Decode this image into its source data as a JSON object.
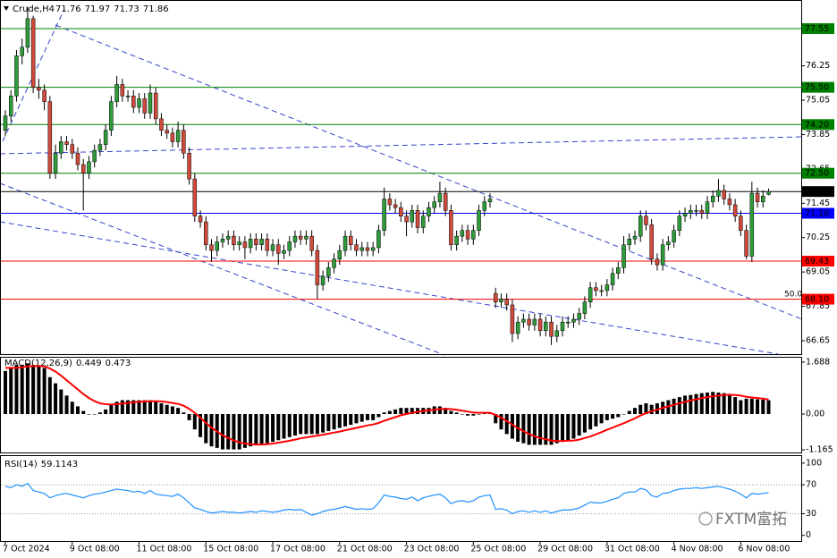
{
  "chart_data": {
    "type": "candlestick",
    "symbol": "Crude,H4",
    "header_values": [
      71.76,
      71.97,
      71.73,
      71.86
    ],
    "watermark": "FXTM富拓",
    "annotation": "50.0",
    "up_color": "#2e9c3a",
    "down_color": "#d04a3c",
    "ylim": [
      66.15,
      78.55
    ],
    "yticks": [
      76.25,
      75.05,
      73.85,
      72.65,
      71.45,
      70.25,
      69.05,
      67.85,
      66.65
    ],
    "levels": [
      {
        "value": 77.55,
        "color": "#008000"
      },
      {
        "value": 75.5,
        "label": "75.50",
        "color": "#008000"
      },
      {
        "value": 74.2,
        "label": "74.20",
        "color": "#008000"
      },
      {
        "value": 72.5,
        "label": "72.50",
        "color": "#008000"
      },
      {
        "value": 71.86,
        "color": "#000000"
      },
      {
        "value": 71.1,
        "label": "71.10",
        "color": "#0000ff"
      },
      {
        "value": 69.43,
        "color": "#ff0000"
      },
      {
        "value": 68.1,
        "label": "68.10",
        "color": "#ff0000"
      }
    ],
    "categories": [
      "7 Oct 2024",
      null,
      null,
      null,
      null,
      null,
      null,
      null,
      null,
      null,
      null,
      null,
      "9 Oct 08:00",
      null,
      null,
      null,
      null,
      null,
      null,
      null,
      null,
      null,
      null,
      null,
      "11 Oct 08:00",
      null,
      null,
      null,
      null,
      null,
      null,
      null,
      null,
      null,
      null,
      null,
      "15 Oct 08:00",
      null,
      null,
      null,
      null,
      null,
      null,
      null,
      null,
      null,
      null,
      null,
      "17 Oct 08:00",
      null,
      null,
      null,
      null,
      null,
      null,
      null,
      null,
      null,
      null,
      null,
      "21 Oct 08:00",
      null,
      null,
      null,
      null,
      null,
      null,
      null,
      null,
      null,
      null,
      null,
      "23 Oct 08:00",
      null,
      null,
      null,
      null,
      null,
      null,
      null,
      null,
      null,
      null,
      null,
      "25 Oct 08:00",
      null,
      null,
      null,
      null,
      null,
      null,
      null,
      null,
      null,
      null,
      null,
      "29 Oct 08:00",
      null,
      null,
      null,
      null,
      null,
      null,
      null,
      null,
      null,
      null,
      null,
      "31 Oct 08:00",
      null,
      null,
      null,
      null,
      null,
      null,
      null,
      null,
      null,
      null,
      null,
      "4 Nov 08:00",
      null,
      null,
      null,
      null,
      null,
      null,
      null,
      null,
      null,
      null,
      null,
      "6 Nov 08:00",
      null,
      null,
      null,
      null,
      null
    ],
    "candles": [
      [
        74.0,
        74.7,
        73.8,
        74.5
      ],
      [
        74.5,
        75.4,
        74.3,
        75.2
      ],
      [
        75.2,
        76.8,
        75.0,
        76.6
      ],
      [
        76.6,
        77.2,
        76.3,
        76.9
      ],
      [
        76.9,
        78.3,
        76.7,
        77.9
      ],
      [
        77.9,
        78.0,
        75.3,
        75.5
      ],
      [
        75.5,
        75.8,
        75.1,
        75.4
      ],
      [
        75.4,
        75.6,
        74.7,
        75.0
      ],
      [
        75.0,
        75.2,
        72.3,
        72.5
      ],
      [
        72.5,
        73.5,
        72.3,
        73.2
      ],
      [
        73.2,
        73.8,
        73.0,
        73.6
      ],
      [
        73.6,
        73.8,
        73.3,
        73.5
      ],
      [
        73.5,
        73.7,
        73.0,
        73.2
      ],
      [
        73.2,
        73.4,
        72.6,
        72.8
      ],
      [
        72.8,
        73.0,
        71.2,
        72.5
      ],
      [
        72.5,
        73.1,
        72.3,
        72.9
      ],
      [
        72.9,
        73.5,
        72.7,
        73.3
      ],
      [
        73.3,
        73.7,
        73.1,
        73.5
      ],
      [
        73.5,
        74.2,
        73.3,
        74.0
      ],
      [
        74.0,
        75.2,
        73.8,
        75.0
      ],
      [
        75.0,
        75.9,
        74.8,
        75.6
      ],
      [
        75.6,
        75.8,
        75.0,
        75.2
      ],
      [
        75.2,
        75.4,
        75.0,
        75.2
      ],
      [
        75.2,
        75.4,
        74.6,
        74.8
      ],
      [
        74.8,
        75.3,
        74.6,
        75.1
      ],
      [
        75.1,
        75.3,
        74.4,
        74.6
      ],
      [
        74.6,
        75.6,
        74.4,
        75.3
      ],
      [
        75.3,
        75.5,
        74.2,
        74.4
      ],
      [
        74.4,
        74.6,
        73.8,
        74.0
      ],
      [
        74.0,
        74.2,
        73.7,
        73.9
      ],
      [
        73.9,
        74.1,
        73.4,
        73.6
      ],
      [
        73.6,
        74.3,
        73.4,
        74.0
      ],
      [
        74.0,
        74.2,
        73.0,
        73.2
      ],
      [
        73.2,
        73.4,
        72.1,
        72.3
      ],
      [
        72.3,
        72.5,
        70.8,
        71.0
      ],
      [
        71.0,
        71.2,
        70.6,
        70.8
      ],
      [
        70.8,
        71.0,
        69.8,
        70.0
      ],
      [
        70.0,
        70.2,
        69.4,
        69.8
      ],
      [
        69.8,
        70.3,
        69.6,
        70.1
      ],
      [
        70.1,
        70.4,
        69.9,
        70.2
      ],
      [
        70.2,
        70.5,
        70.0,
        70.3
      ],
      [
        70.3,
        70.5,
        69.8,
        70.0
      ],
      [
        70.0,
        70.3,
        69.8,
        70.1
      ],
      [
        70.1,
        70.3,
        69.5,
        69.9
      ],
      [
        69.9,
        70.4,
        69.7,
        70.2
      ],
      [
        70.2,
        70.4,
        69.8,
        70.0
      ],
      [
        70.0,
        70.4,
        69.8,
        70.2
      ],
      [
        70.2,
        70.4,
        69.6,
        69.8
      ],
      [
        69.8,
        70.2,
        69.6,
        70.0
      ],
      [
        70.0,
        70.2,
        69.3,
        69.7
      ],
      [
        69.7,
        70.0,
        69.5,
        69.8
      ],
      [
        69.8,
        70.3,
        69.6,
        70.1
      ],
      [
        70.1,
        70.5,
        69.9,
        70.3
      ],
      [
        70.3,
        70.5,
        70.0,
        70.2
      ],
      [
        70.2,
        70.5,
        70.0,
        70.3
      ],
      [
        70.3,
        70.5,
        69.6,
        69.8
      ],
      [
        69.8,
        70.0,
        68.1,
        68.6
      ],
      [
        68.6,
        69.1,
        68.4,
        68.9
      ],
      [
        68.9,
        69.4,
        68.7,
        69.2
      ],
      [
        69.2,
        69.7,
        69.0,
        69.5
      ],
      [
        69.5,
        70.0,
        69.3,
        69.8
      ],
      [
        69.8,
        70.5,
        69.6,
        70.3
      ],
      [
        70.3,
        70.5,
        69.8,
        70.0
      ],
      [
        70.0,
        70.2,
        69.6,
        69.8
      ],
      [
        69.8,
        70.1,
        69.6,
        69.9
      ],
      [
        69.9,
        70.1,
        69.6,
        69.8
      ],
      [
        69.8,
        70.1,
        69.6,
        69.9
      ],
      [
        69.9,
        70.7,
        69.7,
        70.5
      ],
      [
        70.5,
        72.0,
        70.3,
        71.6
      ],
      [
        71.6,
        71.8,
        71.2,
        71.4
      ],
      [
        71.4,
        71.6,
        71.1,
        71.3
      ],
      [
        71.3,
        71.5,
        70.8,
        71.0
      ],
      [
        71.0,
        71.2,
        70.3,
        70.8
      ],
      [
        70.8,
        71.4,
        70.6,
        71.2
      ],
      [
        71.2,
        71.4,
        70.4,
        70.6
      ],
      [
        70.6,
        71.2,
        70.4,
        71.0
      ],
      [
        71.0,
        71.5,
        70.8,
        71.3
      ],
      [
        71.3,
        71.7,
        71.1,
        71.5
      ],
      [
        71.5,
        72.2,
        71.3,
        71.8
      ],
      [
        71.8,
        72.0,
        71.0,
        71.2
      ],
      [
        71.2,
        71.4,
        69.8,
        70.0
      ],
      [
        70.0,
        70.5,
        69.8,
        70.3
      ],
      [
        70.3,
        70.7,
        70.1,
        70.5
      ],
      [
        70.5,
        70.7,
        70.0,
        70.2
      ],
      [
        70.2,
        70.7,
        70.0,
        70.5
      ],
      [
        70.5,
        71.4,
        70.3,
        71.2
      ],
      [
        71.2,
        71.7,
        71.0,
        71.5
      ],
      [
        71.5,
        71.8,
        71.3,
        71.6
      ],
      [
        68.3,
        68.5,
        67.8,
        68.0
      ],
      [
        68.0,
        68.3,
        67.8,
        68.1
      ],
      [
        68.1,
        68.3,
        67.7,
        67.9
      ],
      [
        67.9,
        68.1,
        66.6,
        66.9
      ],
      [
        66.9,
        67.5,
        66.7,
        67.3
      ],
      [
        67.3,
        67.6,
        67.1,
        67.4
      ],
      [
        67.4,
        67.6,
        67.0,
        67.2
      ],
      [
        67.2,
        67.6,
        67.0,
        67.4
      ],
      [
        67.4,
        67.6,
        66.8,
        67.0
      ],
      [
        67.0,
        67.5,
        66.8,
        67.3
      ],
      [
        67.3,
        67.5,
        66.5,
        66.8
      ],
      [
        66.8,
        67.2,
        66.6,
        67.0
      ],
      [
        67.0,
        67.5,
        66.8,
        67.3
      ],
      [
        67.3,
        67.5,
        67.1,
        67.3
      ],
      [
        67.3,
        67.6,
        67.1,
        67.4
      ],
      [
        67.4,
        67.8,
        67.2,
        67.6
      ],
      [
        67.6,
        68.2,
        67.4,
        68.0
      ],
      [
        68.0,
        68.7,
        67.8,
        68.5
      ],
      [
        68.5,
        68.7,
        68.2,
        68.4
      ],
      [
        68.4,
        68.6,
        68.2,
        68.4
      ],
      [
        68.4,
        68.8,
        68.2,
        68.6
      ],
      [
        68.6,
        69.2,
        68.4,
        69.0
      ],
      [
        69.0,
        69.4,
        68.8,
        69.2
      ],
      [
        69.2,
        70.3,
        69.0,
        70.0
      ],
      [
        70.0,
        70.4,
        69.8,
        70.2
      ],
      [
        70.2,
        70.5,
        70.0,
        70.3
      ],
      [
        70.3,
        71.2,
        70.1,
        71.0
      ],
      [
        71.0,
        71.2,
        70.5,
        70.7
      ],
      [
        70.7,
        70.9,
        69.3,
        69.5
      ],
      [
        69.5,
        69.7,
        69.1,
        69.3
      ],
      [
        69.3,
        70.2,
        69.1,
        70.0
      ],
      [
        70.0,
        70.3,
        69.8,
        70.1
      ],
      [
        70.1,
        70.7,
        69.9,
        70.5
      ],
      [
        70.5,
        71.2,
        70.3,
        71.0
      ],
      [
        71.0,
        71.3,
        70.8,
        71.1
      ],
      [
        71.1,
        71.4,
        70.9,
        71.2
      ],
      [
        71.2,
        71.4,
        71.0,
        71.2
      ],
      [
        71.2,
        71.4,
        70.9,
        71.1
      ],
      [
        71.1,
        71.7,
        70.9,
        71.5
      ],
      [
        71.5,
        71.9,
        71.3,
        71.7
      ],
      [
        71.7,
        72.3,
        71.5,
        71.9
      ],
      [
        71.9,
        72.1,
        71.4,
        71.6
      ],
      [
        71.6,
        71.8,
        71.2,
        71.4
      ],
      [
        71.4,
        71.6,
        70.8,
        71.0
      ],
      [
        71.0,
        71.2,
        70.3,
        70.5
      ],
      [
        70.5,
        70.7,
        69.5,
        69.6
      ],
      [
        69.6,
        72.2,
        69.4,
        71.8
      ],
      [
        71.8,
        72.0,
        71.3,
        71.5
      ],
      [
        71.5,
        71.9,
        71.3,
        71.7
      ],
      [
        71.76,
        71.97,
        71.73,
        71.86
      ]
    ],
    "macd": {
      "label": "MACD(12,26,9)",
      "current": [
        0.449,
        0.473
      ],
      "ylim": [
        -1.279,
        1.862
      ],
      "yticks": [
        1.688,
        {
          "value": 0,
          "label": "0.00"
        },
        -1.165
      ],
      "hist_color": "#000000",
      "signal_color": "#ff0000",
      "histogram": [
        1.4,
        1.5,
        1.6,
        1.6,
        1.65,
        1.6,
        1.55,
        1.5,
        1.2,
        1.0,
        0.8,
        0.6,
        0.4,
        0.25,
        0.1,
        0.0,
        0.0,
        0.05,
        0.15,
        0.3,
        0.4,
        0.45,
        0.45,
        0.45,
        0.45,
        0.45,
        0.45,
        0.4,
        0.35,
        0.3,
        0.25,
        0.2,
        0.05,
        -0.2,
        -0.5,
        -0.75,
        -0.95,
        -1.05,
        -1.1,
        -1.15,
        -1.15,
        -1.15,
        -1.15,
        -1.1,
        -1.05,
        -1.0,
        -1.0,
        -0.95,
        -0.9,
        -0.85,
        -0.8,
        -0.75,
        -0.7,
        -0.65,
        -0.65,
        -0.65,
        -0.65,
        -0.6,
        -0.55,
        -0.5,
        -0.45,
        -0.4,
        -0.35,
        -0.3,
        -0.25,
        -0.2,
        -0.2,
        -0.1,
        0.05,
        0.1,
        0.15,
        0.2,
        0.2,
        0.2,
        0.2,
        0.2,
        0.2,
        0.25,
        0.25,
        0.2,
        0.1,
        0.05,
        0.0,
        -0.05,
        -0.05,
        0.0,
        0.05,
        0.05,
        -0.3,
        -0.5,
        -0.65,
        -0.8,
        -0.9,
        -0.95,
        -1.0,
        -1.0,
        -1.0,
        -1.0,
        -1.0,
        -0.95,
        -0.9,
        -0.85,
        -0.8,
        -0.7,
        -0.6,
        -0.5,
        -0.4,
        -0.3,
        -0.2,
        -0.15,
        -0.1,
        0.0,
        0.1,
        0.2,
        0.3,
        0.35,
        0.3,
        0.35,
        0.4,
        0.45,
        0.5,
        0.55,
        0.6,
        0.62,
        0.65,
        0.68,
        0.7,
        0.72,
        0.7,
        0.68,
        0.62,
        0.55,
        0.45,
        0.5,
        0.5,
        0.48,
        0.47,
        0.449
      ],
      "signal": [
        1.5,
        1.5,
        1.5,
        1.52,
        1.55,
        1.56,
        1.56,
        1.55,
        1.48,
        1.38,
        1.25,
        1.1,
        0.95,
        0.8,
        0.65,
        0.52,
        0.42,
        0.35,
        0.32,
        0.31,
        0.32,
        0.34,
        0.36,
        0.38,
        0.4,
        0.41,
        0.42,
        0.42,
        0.41,
        0.39,
        0.36,
        0.33,
        0.27,
        0.17,
        0.04,
        -0.12,
        -0.29,
        -0.44,
        -0.57,
        -0.69,
        -0.78,
        -0.86,
        -0.92,
        -0.96,
        -0.98,
        -0.99,
        -0.99,
        -0.98,
        -0.96,
        -0.93,
        -0.9,
        -0.87,
        -0.83,
        -0.79,
        -0.76,
        -0.73,
        -0.7,
        -0.67,
        -0.64,
        -0.6,
        -0.57,
        -0.53,
        -0.49,
        -0.45,
        -0.41,
        -0.37,
        -0.34,
        -0.29,
        -0.22,
        -0.16,
        -0.1,
        -0.04,
        0.0,
        0.04,
        0.07,
        0.1,
        0.12,
        0.14,
        0.16,
        0.17,
        0.16,
        0.14,
        0.11,
        0.08,
        0.05,
        0.04,
        0.04,
        0.04,
        -0.03,
        -0.12,
        -0.23,
        -0.34,
        -0.46,
        -0.56,
        -0.65,
        -0.72,
        -0.78,
        -0.82,
        -0.86,
        -0.88,
        -0.88,
        -0.87,
        -0.86,
        -0.83,
        -0.78,
        -0.73,
        -0.66,
        -0.59,
        -0.51,
        -0.44,
        -0.37,
        -0.3,
        -0.22,
        -0.14,
        -0.05,
        0.03,
        0.09,
        0.14,
        0.2,
        0.25,
        0.3,
        0.35,
        0.4,
        0.44,
        0.48,
        0.52,
        0.55,
        0.58,
        0.6,
        0.62,
        0.63,
        0.62,
        0.6,
        0.56,
        0.54,
        0.52,
        0.5,
        0.473
      ]
    },
    "rsi": {
      "label": "RSI(14)",
      "current": 59.1143,
      "ylim": [
        -9,
        111
      ],
      "yticks": [
        100,
        70,
        30,
        0
      ],
      "color": "#1e90ff",
      "values": [
        68,
        66,
        70,
        68,
        72,
        62,
        60,
        58,
        52,
        55,
        57,
        58,
        56,
        54,
        52,
        55,
        57,
        58,
        60,
        62,
        64,
        63,
        62,
        60,
        61,
        58,
        62,
        57,
        56,
        55,
        54,
        57,
        52,
        45,
        38,
        36,
        33,
        31,
        32,
        33,
        32,
        32,
        31,
        32,
        33,
        32,
        34,
        33,
        32,
        33,
        35,
        36,
        35,
        36,
        32,
        28,
        30,
        33,
        35,
        36,
        38,
        40,
        38,
        36,
        37,
        36,
        37,
        45,
        56,
        54,
        53,
        51,
        50,
        53,
        48,
        52,
        54,
        56,
        57,
        52,
        44,
        47,
        48,
        46,
        48,
        53,
        55,
        56,
        36,
        37,
        35,
        30,
        33,
        34,
        32,
        34,
        32,
        34,
        31,
        33,
        35,
        35,
        36,
        38,
        42,
        46,
        45,
        45,
        47,
        50,
        52,
        58,
        60,
        60,
        65,
        63,
        55,
        53,
        58,
        59,
        62,
        64,
        65,
        65,
        66,
        65,
        66,
        67,
        68,
        66,
        64,
        61,
        57,
        52,
        58,
        57,
        58,
        59.1143
      ]
    }
  }
}
